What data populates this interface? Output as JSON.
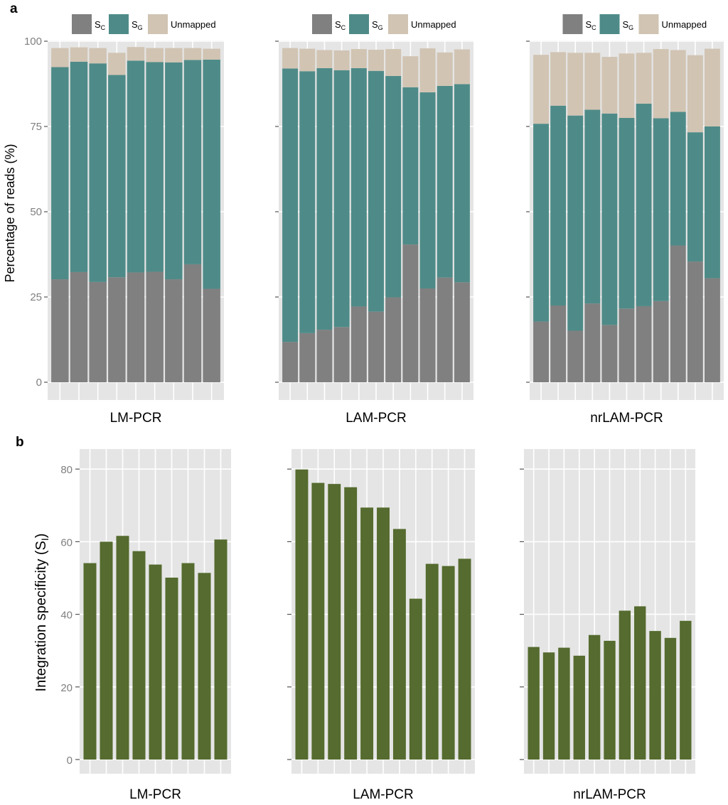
{
  "chart_data": [
    {
      "panel": "a",
      "type": "bar",
      "stacked": true,
      "ylabel": "Percentage of reads (%)",
      "ylim": [
        0,
        100
      ],
      "yticks": [
        0,
        25,
        50,
        75,
        100
      ],
      "legend": {
        "position": "top",
        "items": [
          {
            "main": "S",
            "sub": "C",
            "color": "#808080"
          },
          {
            "main": "S",
            "sub": "G",
            "color": "#4e8b88"
          },
          {
            "main": "Unmapped",
            "sub": "",
            "color": "#d1c4b3"
          }
        ]
      },
      "facets": [
        {
          "label": "LM-PCR",
          "series": [
            {
              "name": "SC",
              "values": [
                30.2,
                32.3,
                29.4,
                30.8,
                32.2,
                32.4,
                30.2,
                34.6,
                27.4
              ]
            },
            {
              "name": "SG",
              "values": [
                62.2,
                61.7,
                64.1,
                59.3,
                62.1,
                61.5,
                63.6,
                59.9,
                67.2
              ]
            },
            {
              "name": "Unmapped",
              "values": [
                5.6,
                4.2,
                4.5,
                6.5,
                4.0,
                4.1,
                4.2,
                3.5,
                3.2
              ]
            }
          ]
        },
        {
          "label": "LAM-PCR",
          "series": [
            {
              "name": "SC",
              "values": [
                11.8,
                14.4,
                15.4,
                16.2,
                22.2,
                20.7,
                24.9,
                40.4,
                27.5,
                30.7,
                29.3
              ]
            },
            {
              "name": "SG",
              "values": [
                80.2,
                76.8,
                76.7,
                75.3,
                69.9,
                70.6,
                64.9,
                46.1,
                57.5,
                56.2,
                58.1
              ]
            },
            {
              "name": "Unmapped",
              "values": [
                6.0,
                6.6,
                5.3,
                5.8,
                5.6,
                6.2,
                7.9,
                9.1,
                12.9,
                9.8,
                10.2
              ]
            }
          ]
        },
        {
          "label": "nrLAM-PCR",
          "series": [
            {
              "name": "SC",
              "values": [
                17.8,
                22.5,
                15.1,
                23.1,
                16.8,
                21.6,
                22.3,
                23.8,
                40.1,
                35.4,
                30.5
              ]
            },
            {
              "name": "SG",
              "values": [
                58.0,
                58.6,
                63.1,
                56.8,
                62.0,
                55.9,
                59.4,
                53.6,
                39.2,
                37.9,
                44.5
              ]
            },
            {
              "name": "Unmapped",
              "values": [
                20.2,
                15.7,
                18.4,
                16.7,
                16.6,
                18.9,
                14.9,
                20.3,
                18.1,
                22.6,
                22.8
              ]
            }
          ]
        }
      ]
    },
    {
      "panel": "b",
      "type": "bar",
      "ylabel_main": "Integration specificity (S",
      "ylabel_sub": "I",
      "ylabel_tail": ")",
      "ylim": [
        0,
        82
      ],
      "yticks": [
        0,
        20,
        40,
        60,
        80
      ],
      "bar_color": "#556b2f",
      "facets": [
        {
          "label": "LM-PCR",
          "values": [
            54.1,
            60.0,
            61.6,
            57.4,
            53.7,
            50.1,
            54.1,
            51.4,
            60.6
          ]
        },
        {
          "label": "LAM-PCR",
          "values": [
            79.9,
            76.2,
            75.9,
            75.0,
            69.4,
            69.4,
            63.5,
            44.3,
            53.9,
            53.3,
            55.3
          ]
        },
        {
          "label": "nrLAM-PCR",
          "values": [
            31.0,
            29.5,
            30.8,
            28.6,
            34.3,
            32.7,
            41.0,
            42.2,
            35.4,
            33.5,
            38.2
          ]
        }
      ]
    }
  ]
}
